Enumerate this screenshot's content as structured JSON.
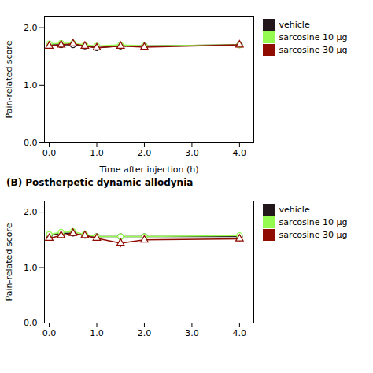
{
  "chart_data": [
    {
      "type": "line",
      "xlabel": "Time after injection (h)",
      "ylabel": "Pain-related score",
      "x": [
        0,
        0.25,
        0.5,
        0.75,
        1.0,
        1.5,
        2.0,
        4.0
      ],
      "series": [
        {
          "name": "vehicle",
          "marker": "circle",
          "values": [
            1.7,
            1.7,
            1.7,
            1.68,
            1.65,
            1.68,
            1.68,
            1.7
          ],
          "errors": [
            0.04,
            0.05,
            0.05,
            0.05,
            0.05,
            0.06,
            0.04,
            0.04
          ]
        },
        {
          "name": "sarcosine 10 μg",
          "marker": "circle",
          "values": [
            1.72,
            1.73,
            1.73,
            1.7,
            1.68,
            1.7,
            1.68,
            1.7
          ],
          "errors": [
            0.04,
            0.05,
            0.05,
            0.04,
            0.04,
            0.05,
            0.04,
            0.04
          ]
        },
        {
          "name": "sarcosine 30 μg",
          "marker": "triangle",
          "values": [
            1.68,
            1.7,
            1.72,
            1.68,
            1.65,
            1.68,
            1.66,
            1.7
          ],
          "errors": [
            0.04,
            0.05,
            0.04,
            0.05,
            0.04,
            0.05,
            0.04,
            0.04
          ]
        }
      ],
      "xlim": [
        -0.1,
        4.3
      ],
      "xticks": [
        0,
        1,
        2,
        3,
        4
      ],
      "ylim": [
        0,
        2.2
      ],
      "yticks": [
        0,
        1,
        2
      ],
      "legend": "right"
    },
    {
      "type": "line",
      "title": "(B) Postherpetic dynamic allodynia",
      "ylabel": "Pain-related score",
      "x": [
        0,
        0.25,
        0.5,
        0.75,
        1.0,
        1.5,
        2.0,
        4.0
      ],
      "series": [
        {
          "name": "vehicle",
          "marker": "circle",
          "values": [
            1.58,
            1.62,
            1.62,
            1.58,
            1.56,
            1.56,
            1.56,
            1.56
          ],
          "errors": [
            0.04,
            0.05,
            0.05,
            0.05,
            0.05,
            0.04,
            0.04,
            0.06
          ]
        },
        {
          "name": "sarcosine 10 μg",
          "marker": "circle",
          "values": [
            1.6,
            1.64,
            1.65,
            1.6,
            1.56,
            1.56,
            1.56,
            1.58
          ],
          "errors": [
            0.04,
            0.04,
            0.05,
            0.04,
            0.04,
            0.05,
            0.04,
            0.05
          ]
        },
        {
          "name": "sarcosine 30 μg",
          "marker": "triangle",
          "values": [
            1.53,
            1.58,
            1.62,
            1.58,
            1.53,
            1.44,
            1.5,
            1.52
          ],
          "errors": [
            0.04,
            0.04,
            0.04,
            0.05,
            0.04,
            0.08,
            0.05,
            0.06
          ]
        }
      ],
      "xlim": [
        -0.1,
        4.3
      ],
      "xticks": [
        0,
        1,
        2,
        3,
        4
      ],
      "ylim": [
        0,
        2.2
      ],
      "yticks": [
        0,
        1,
        2
      ],
      "legend": "right"
    }
  ]
}
